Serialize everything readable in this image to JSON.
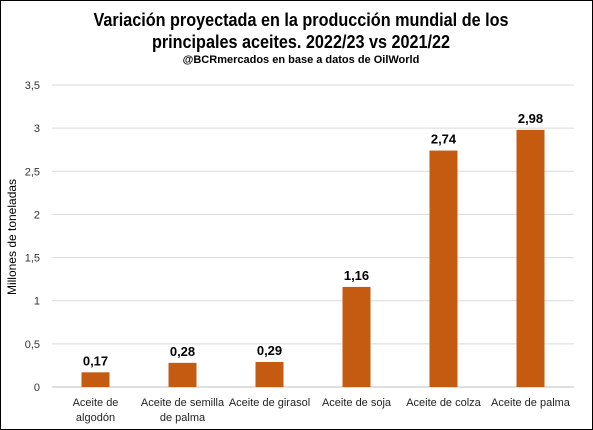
{
  "chart_data": {
    "type": "bar",
    "title_lines": [
      "Variación proyectada en la producción mundial de los",
      "principales aceites. 2022/23 vs 2021/22"
    ],
    "subtitle": "@BCRmercados en base a datos de OilWorld",
    "ylabel": "Millones de toneladas",
    "xlabel": "",
    "categories": [
      [
        "Aceite de",
        "algodón"
      ],
      [
        "Aceite de semilla",
        "de palma"
      ],
      [
        "Aceite de girasol"
      ],
      [
        "Aceite de soja"
      ],
      [
        "Aceite de colza"
      ],
      [
        "Aceite de palma"
      ]
    ],
    "values": [
      0.17,
      0.28,
      0.29,
      1.16,
      2.74,
      2.98
    ],
    "value_labels": [
      "0,17",
      "0,28",
      "0,29",
      "1,16",
      "2,74",
      "2,98"
    ],
    "ylim": [
      0,
      3.5
    ],
    "yticks": [
      0,
      0.5,
      1,
      1.5,
      2,
      2.5,
      3,
      3.5
    ],
    "ytick_labels": [
      "0",
      "0,5",
      "1",
      "1,5",
      "2",
      "2,5",
      "3",
      "3,5"
    ],
    "grid": "horizontal",
    "legend": "none",
    "bar_color": "#C55A11",
    "grid_color": "#D9D9D9"
  }
}
